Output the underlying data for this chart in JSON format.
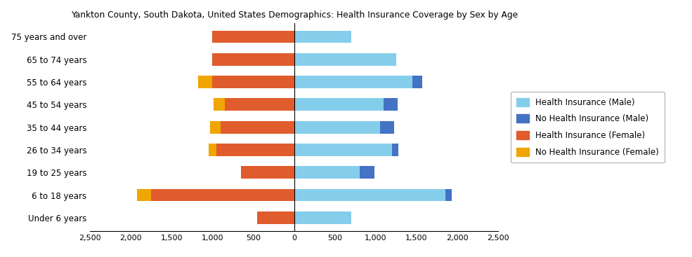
{
  "title": "Yankton County, South Dakota, United States Demographics: Health Insurance Coverage by Sex by Age",
  "age_groups": [
    "Under 6 years",
    "6 to 18 years",
    "19 to 25 years",
    "26 to 34 years",
    "35 to 44 years",
    "45 to 54 years",
    "55 to 64 years",
    "65 to 74 years",
    "75 years and over"
  ],
  "health_ins_male": [
    700,
    1850,
    800,
    1200,
    1050,
    1100,
    1450,
    1250,
    700
  ],
  "no_health_ins_male": [
    0,
    80,
    180,
    80,
    175,
    170,
    120,
    0,
    0
  ],
  "health_ins_female": [
    450,
    1750,
    650,
    950,
    900,
    850,
    1000,
    1000,
    1000
  ],
  "no_health_ins_female": [
    0,
    175,
    0,
    100,
    130,
    140,
    175,
    0,
    0
  ],
  "color_health_male": "#85CEEB",
  "color_no_health_male": "#4472C4",
  "color_health_female": "#E05C2D",
  "color_no_health_female": "#F0A500",
  "xlim": 2500,
  "legend_labels": [
    "Health Insurance (Male)",
    "No Health Insurance (Male)",
    "Health Insurance (Female)",
    "No Health Insurance (Female)"
  ]
}
